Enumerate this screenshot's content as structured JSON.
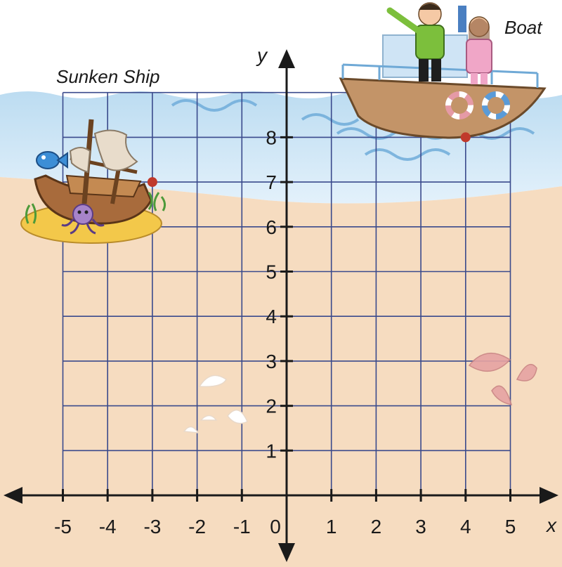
{
  "diagram": {
    "x_axis_label": "x",
    "y_axis_label": "y",
    "x_ticks": [
      "-5",
      "-4",
      "-3",
      "-2",
      "-1",
      "0",
      "1",
      "2",
      "3",
      "4",
      "5"
    ],
    "y_ticks": [
      "1",
      "2",
      "3",
      "4",
      "5",
      "6",
      "7",
      "8"
    ],
    "x_range": [
      -5,
      5
    ],
    "y_range": [
      0,
      9
    ],
    "grid": true
  },
  "places": {
    "sunken_ship": {
      "label": "Sunken Ship",
      "x": -3,
      "y": 7
    },
    "boat": {
      "label": "Boat",
      "x": 4,
      "y": 8
    }
  },
  "colors": {
    "sand": "#f6dcc0",
    "water": "#cfe6f5",
    "grid": "#3a4a8c",
    "axis": "#1a1a1a",
    "point": "#c0392b"
  },
  "icons": [
    "fish-icon",
    "octopus-icon",
    "shell-icon",
    "life-ring-icon"
  ]
}
